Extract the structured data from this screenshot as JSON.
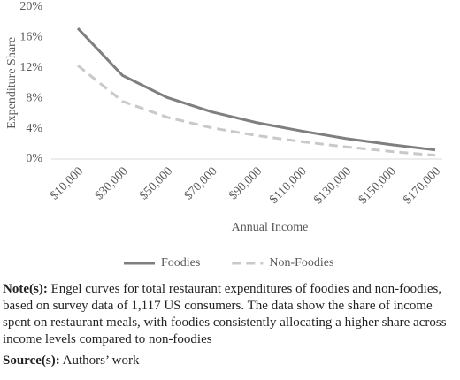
{
  "chart_data": {
    "type": "line",
    "y_label": "Expenditure Share",
    "x_label": "Annual Income",
    "x": [
      10000,
      30000,
      50000,
      70000,
      90000,
      110000,
      130000,
      150000,
      170000
    ],
    "xlim": [
      10000,
      170000
    ],
    "xticks": [
      {
        "value": 10000,
        "label": "$10,000"
      },
      {
        "value": 30000,
        "label": "$30,000"
      },
      {
        "value": 50000,
        "label": "$50,000"
      },
      {
        "value": 70000,
        "label": "$70,000"
      },
      {
        "value": 90000,
        "label": "$90,000"
      },
      {
        "value": 110000,
        "label": "$110,000"
      },
      {
        "value": 130000,
        "label": "$130,000"
      },
      {
        "value": 150000,
        "label": "$150,000"
      },
      {
        "value": 170000,
        "label": "$170,000"
      }
    ],
    "ylim": [
      0,
      20
    ],
    "yticks": [
      {
        "value": 0,
        "label": "0%"
      },
      {
        "value": 4,
        "label": "4%"
      },
      {
        "value": 8,
        "label": "8%"
      },
      {
        "value": 12,
        "label": "12%"
      },
      {
        "value": 16,
        "label": "16%"
      },
      {
        "value": 20,
        "label": "20%"
      }
    ],
    "grid": false,
    "legend": "bottom",
    "series": [
      {
        "name": "Foodies",
        "color": "#7f7f7f",
        "dashed": false,
        "values": [
          17.2,
          11.0,
          8.1,
          6.2,
          4.8,
          3.7,
          2.7,
          1.9,
          1.2
        ]
      },
      {
        "name": "Non-Foodies",
        "color": "#c9c9c9",
        "dashed": true,
        "values": [
          12.3,
          7.6,
          5.5,
          4.1,
          3.1,
          2.3,
          1.6,
          1.0,
          0.5
        ]
      }
    ]
  },
  "note": {
    "label": "Note(s):",
    "text": "Engel curves for total restaurant expenditures of foodies and non-foodies, based on survey data of 1,117 US consumers. The data show the share of income spent on restaurant meals, with foodies consistently allocating a higher share across income levels compared to non-foodies"
  },
  "source": {
    "label": "Source(s):",
    "text": "Authors’ work"
  }
}
